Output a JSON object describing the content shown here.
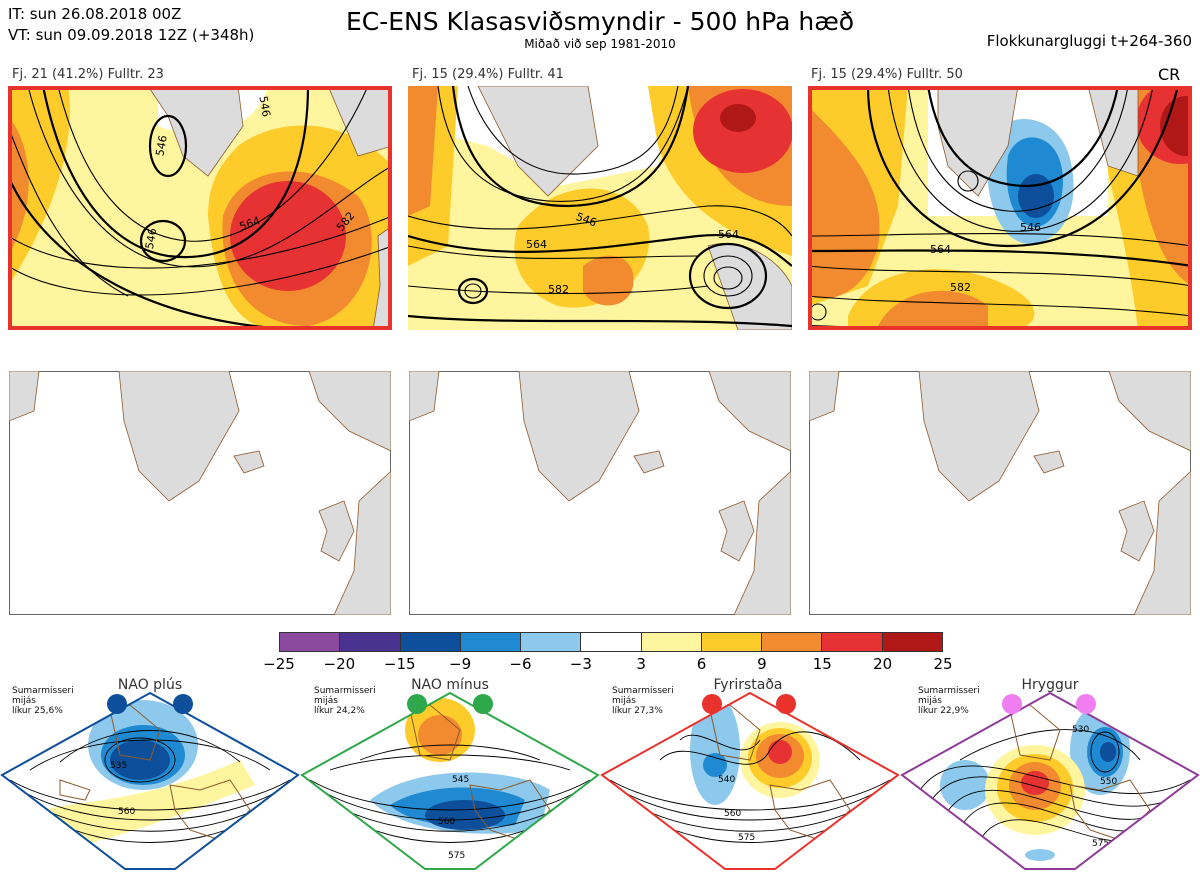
{
  "header": {
    "it_line": "IT: sun 26.08.2018 00Z",
    "vt_line": "VT: sun 09.09.2018 12Z  (+348h)",
    "title": "EC-ENS Klasasviðsmyndir - 500 hPa hæð",
    "subtitle": "Miðað við sep 1981-2010",
    "window": "Flokkunargluggi t+264-360"
  },
  "clusters": [
    {
      "caption": "Fj. 21 (41.2%)   Fulltr. 23",
      "contours": [
        "546",
        "564",
        "582",
        "546",
        "546"
      ]
    },
    {
      "caption": "Fj. 15 (29.4%)   Fulltr. 41",
      "contours": [
        "546",
        "564",
        "582",
        "564"
      ]
    },
    {
      "caption": "Fj. 15 (29.4%)   Fulltr. 50",
      "contours": [
        "546",
        "564",
        "582"
      ]
    }
  ],
  "cr_label": "CR",
  "colorbar": {
    "labels": [
      "−25",
      "−20",
      "−15",
      "−9",
      "−6",
      "−3",
      "3",
      "6",
      "9",
      "15",
      "20",
      "25"
    ],
    "colors": [
      "#8b4a9e",
      "#4a3291",
      "#0d4f9b",
      "#1f8ad1",
      "#8dc9ec",
      "#ffffff",
      "#fff59f",
      "#fdcb2a",
      "#f28a30",
      "#e63232",
      "#b01818"
    ]
  },
  "colors": {
    "frame_red": "#e8322b",
    "land_gray": "#dcdcdc",
    "coast_brown": "#8b5a2b"
  },
  "regimes": [
    {
      "title": "NAO plús",
      "season": "Sumarmisseri",
      "rule": "mijás",
      "prob": "líkur 25,6%",
      "color": "#0d4f9b",
      "labels": [
        "535",
        "560"
      ]
    },
    {
      "title": "NAO mínus",
      "season": "Sumarmisseri",
      "rule": "mijás",
      "prob": "líkur 24,2%",
      "color": "#2ea84a",
      "labels": [
        "545",
        "560",
        "575"
      ]
    },
    {
      "title": "Fyrirstaða",
      "season": "Sumarmisseri",
      "rule": "mijás",
      "prob": "líkur 27,3%",
      "color": "#e8322b",
      "labels": [
        "540",
        "560",
        "575"
      ]
    },
    {
      "title": "Hryggur",
      "season": "Sumarmisseri",
      "rule": "mijás",
      "prob": "líkur 22,9%",
      "color": "#8e3a99",
      "labels": [
        "530",
        "550",
        "575"
      ]
    }
  ]
}
